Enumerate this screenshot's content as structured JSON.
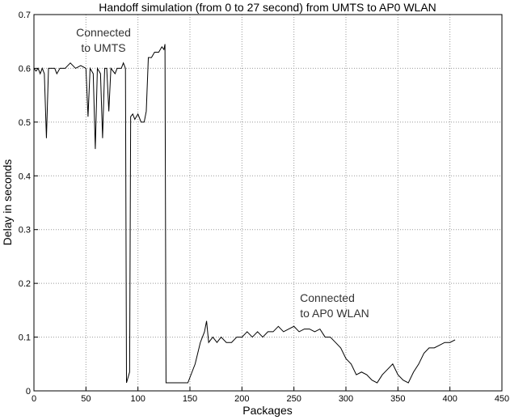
{
  "chart_data": {
    "type": "line",
    "title": "Handoff simulation (from 0 to 27 second) from UMTS to AP0 WLAN",
    "xlabel": "Packages",
    "ylabel": "Delay in seconds",
    "annotations": [
      [
        "Connected",
        "to UMTS"
      ],
      [
        "Connected",
        "to AP0 WLAN"
      ]
    ],
    "xlim": [
      0,
      450
    ],
    "xticks": [
      0,
      50,
      100,
      150,
      200,
      250,
      300,
      350,
      400,
      450
    ],
    "ylim": [
      0,
      0.7
    ],
    "yticks": [
      0,
      0.1,
      0.2,
      0.3,
      0.4,
      0.5,
      0.6,
      0.7
    ],
    "grid": true,
    "series": [
      {
        "name": "Delay",
        "color": "#000000",
        "x": [
          0,
          2,
          4,
          6,
          8,
          10,
          12,
          14,
          20,
          22,
          25,
          30,
          35,
          40,
          45,
          50,
          52,
          54,
          57,
          59,
          61,
          64,
          66,
          68,
          70,
          72,
          74,
          78,
          80,
          84,
          86,
          88,
          89,
          92,
          93,
          95,
          97,
          100,
          103,
          106,
          108,
          110,
          113,
          116,
          120,
          123,
          125,
          126,
          127,
          148,
          155,
          160,
          164,
          166,
          168,
          172,
          176,
          180,
          185,
          190,
          195,
          200,
          205,
          210,
          215,
          220,
          225,
          230,
          235,
          240,
          245,
          250,
          255,
          260,
          265,
          270,
          275,
          280,
          285,
          290,
          295,
          300,
          305,
          310,
          315,
          320,
          325,
          330,
          335,
          340,
          345,
          350,
          355,
          360,
          365,
          370,
          375,
          380,
          385,
          390,
          395,
          400,
          405
        ],
        "values": [
          0.6,
          0.595,
          0.6,
          0.59,
          0.6,
          0.59,
          0.47,
          0.6,
          0.6,
          0.59,
          0.6,
          0.6,
          0.61,
          0.6,
          0.605,
          0.6,
          0.51,
          0.6,
          0.59,
          0.45,
          0.6,
          0.59,
          0.47,
          0.6,
          0.6,
          0.52,
          0.6,
          0.59,
          0.6,
          0.6,
          0.61,
          0.6,
          0.015,
          0.035,
          0.51,
          0.515,
          0.505,
          0.515,
          0.5,
          0.5,
          0.52,
          0.62,
          0.62,
          0.63,
          0.63,
          0.64,
          0.635,
          0.645,
          0.015,
          0.015,
          0.05,
          0.09,
          0.11,
          0.13,
          0.09,
          0.1,
          0.09,
          0.1,
          0.09,
          0.09,
          0.1,
          0.1,
          0.11,
          0.1,
          0.11,
          0.1,
          0.11,
          0.11,
          0.12,
          0.11,
          0.115,
          0.12,
          0.11,
          0.115,
          0.115,
          0.11,
          0.115,
          0.1,
          0.1,
          0.09,
          0.08,
          0.06,
          0.05,
          0.03,
          0.035,
          0.03,
          0.02,
          0.015,
          0.03,
          0.04,
          0.05,
          0.03,
          0.02,
          0.015,
          0.035,
          0.05,
          0.07,
          0.08,
          0.08,
          0.085,
          0.09,
          0.09,
          0.095
        ]
      }
    ]
  }
}
